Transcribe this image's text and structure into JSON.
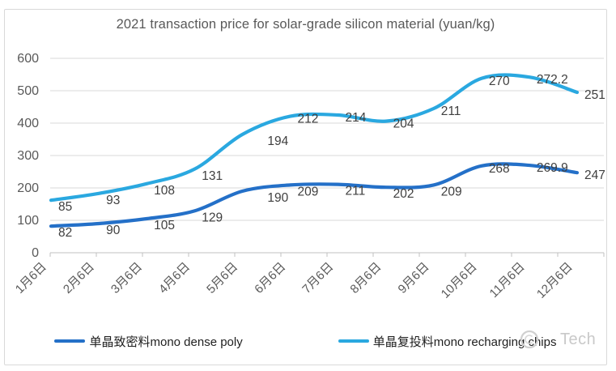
{
  "chart_data": {
    "type": "line",
    "title": "2021 transaction price for solar-grade silicon material (yuan/kg)",
    "categories": [
      "1月6日",
      "2月6日",
      "3月6日",
      "4月6日",
      "5月6日",
      "6月6日",
      "7月6日",
      "8月6日",
      "9月6日",
      "10月6日",
      "11月6日",
      "12月6日"
    ],
    "y_axis": {
      "min": 0,
      "max": 600,
      "step": 100,
      "tick_labels": [
        "0",
        "100",
        "200",
        "300",
        "400",
        "500",
        "600"
      ]
    },
    "x_axis": {
      "label_rotation_deg": -45
    },
    "grid": true,
    "smooth_lines": true,
    "legend_position": "bottom",
    "series": [
      {
        "name": "单晶致密料mono dense poly",
        "color": "#2470c8",
        "values": [
          82,
          90,
          105,
          129,
          190,
          209,
          211,
          202,
          209,
          268,
          269.9,
          247
        ]
      },
      {
        "name": "单晶复投料mono recharging chips",
        "color": "#2aa8e0",
        "values": [
          85,
          93,
          108,
          131,
          194,
          212,
          214,
          204,
          211,
          270,
          272.2,
          251
        ],
        "rendered_values": [
          162,
          183,
          213,
          258,
          365,
          421,
          425,
          406,
          445,
          538,
          542,
          495
        ],
        "note": "line is drawn higher than its labeled values (approximately the sum of both series); data labels show the values listed above"
      }
    ]
  },
  "watermark": {
    "text": "Tech"
  },
  "colors": {
    "frame": "#d9d9d9",
    "grid": "#d9d9d9",
    "axis_line": "#c0c0c0",
    "tick_text": "#595959",
    "title_text": "#595959",
    "data_label_text": "#3f3f3f",
    "legend_text": "#1f1f1f",
    "watermark_text": "#c9c9c9",
    "background": "#ffffff"
  }
}
